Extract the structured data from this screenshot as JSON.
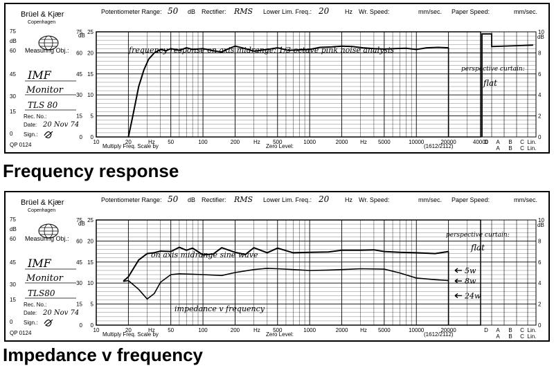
{
  "charts": [
    {
      "brand": "Brüel & Kjær",
      "brand_city": "Copenhagen",
      "potentiometer_label": "Potentiometer Range:",
      "potentiometer_value": "50",
      "db_unit": "dB",
      "rectifier_label": "Rectifier:",
      "rectifier_value": "RMS",
      "lower_lim_label": "Lower Lim. Freq.:",
      "lower_lim_value": "20",
      "hz_unit": "Hz",
      "wr_speed_label": "Wr. Speed:",
      "speed_unit": "mm/sec.",
      "paper_speed_label": "Paper Speed:",
      "measuring_obj_label": "Measuring Obj.:",
      "obj_line1": "IMF",
      "obj_line2": "Monitor",
      "obj_line3": "TLS 80",
      "rec_no_label": "Rec. No.:",
      "date_label": "Date:",
      "date_value": "20 Nov 74",
      "sign_label": "Sign.:",
      "form_code": "QP 0124",
      "multiply_label": "Multiply Freq. Scale by",
      "zero_level_label": "Zero Level:",
      "code_label": "(1612/2112)",
      "annotation_main": "frequency response on axis midrange: 1/3 octave pink noise analysis",
      "annotation_side1": "perspective curtain:",
      "annotation_side2": "flat",
      "side_annotations": []
    },
    {
      "brand": "Brüel & Kjær",
      "brand_city": "Copenhagen",
      "potentiometer_label": "Potentiometer Range:",
      "potentiometer_value": "50",
      "db_unit": "dB",
      "rectifier_label": "Rectifier:",
      "rectifier_value": "RMS",
      "lower_lim_label": "Lower Lim. Freq.:",
      "lower_lim_value": "20",
      "hz_unit": "Hz",
      "wr_speed_label": "Wr. Speed:",
      "speed_unit": "mm/sec.",
      "paper_speed_label": "Paper Speed:",
      "measuring_obj_label": "Measuring Obj.:",
      "obj_line1": "IMF",
      "obj_line2": "Monitor",
      "obj_line3": "TLS80",
      "rec_no_label": "Rec. No.:",
      "date_label": "Date:",
      "date_value": "20 Nov 74",
      "sign_label": "Sign.:",
      "form_code": "QP 0124",
      "multiply_label": "Multiply Freq. Scale by",
      "zero_level_label": "Zero Level:",
      "code_label": "(1612/2112)",
      "annotation_main": "on axis midrange sine wave",
      "annotation_curve2": "impedance v frequency",
      "annotation_side1": "perspective curtain:",
      "annotation_side2": "flat",
      "side_annotations": [
        "5w",
        "8w",
        "24w"
      ]
    }
  ],
  "captions": {
    "top": "Frequency response",
    "bottom": "Impedance v frequency"
  },
  "chart_data": [
    {
      "type": "line",
      "title": "Frequency response",
      "x_scale": "log",
      "xlim": [
        10,
        40000
      ],
      "x_ticks": [
        10,
        20,
        50,
        100,
        200,
        500,
        1000,
        2000,
        5000,
        10000,
        20000,
        40000
      ],
      "x_tick_labels": [
        "10",
        "20",
        "Hz",
        "50",
        "100",
        "200",
        "Hz",
        "500",
        "1000",
        "2000",
        "Hz",
        "5000",
        "10000",
        "20000",
        "40000"
      ],
      "ylim": [
        0,
        25
      ],
      "y_ticks_left": [
        "0",
        "5",
        "10",
        "15",
        "20",
        "25"
      ],
      "y_ticks_left_outer": [
        "0",
        "15",
        "30",
        "45",
        "60",
        "75"
      ],
      "y_ticks_right": [
        "0",
        "2",
        "4",
        "6",
        "8",
        "10"
      ],
      "y_unit_left": "dB",
      "y_unit_right": "dB",
      "weighting_labels_top": [
        "D",
        "A",
        "B",
        "C",
        "Lin."
      ],
      "weighting_labels_bottom": [
        "A",
        "B",
        "C",
        "Lin."
      ],
      "series": [
        {
          "x": [
            20,
            22,
            25,
            28,
            31,
            35,
            40,
            45,
            50,
            60,
            70,
            80,
            100,
            125,
            150,
            160,
            200,
            250,
            300,
            400,
            500,
            630,
            800,
            1000,
            1250,
            1600,
            2000,
            2500,
            3150,
            4000,
            5000,
            6300,
            8000,
            10000,
            12500,
            16000,
            20000
          ],
          "y": [
            0,
            5,
            12,
            16,
            18.5,
            20,
            20.8,
            20.5,
            21,
            20.6,
            21.2,
            20.8,
            21,
            20.5,
            20.2,
            20.6,
            21.6,
            21,
            20.4,
            20.8,
            21.2,
            20.6,
            20.7,
            20.8,
            21.3,
            21.4,
            21.6,
            21.5,
            21.2,
            21,
            20.9,
            21,
            21.1,
            20.8,
            21.2,
            21.3,
            21.2
          ]
        }
      ]
    },
    {
      "type": "line",
      "title": "Impedance v frequency",
      "x_scale": "log",
      "xlim": [
        10,
        40000
      ],
      "x_ticks": [
        10,
        20,
        50,
        100,
        200,
        500,
        1000,
        2000,
        5000,
        10000,
        20000
      ],
      "ylim": [
        0,
        25
      ],
      "y_ticks_left": [
        "0",
        "5",
        "10",
        "15",
        "20",
        "25"
      ],
      "y_ticks_left_outer": [
        "0",
        "15",
        "30",
        "45",
        "60",
        "75"
      ],
      "y_ticks_right": [
        "0",
        "2",
        "4",
        "6",
        "8",
        "10"
      ],
      "series": [
        {
          "name": "on axis midrange sine wave",
          "x": [
            18,
            20,
            25,
            30,
            35,
            40,
            50,
            60,
            70,
            80,
            100,
            125,
            150,
            200,
            250,
            300,
            400,
            500,
            700,
            1000,
            1500,
            2000,
            3000,
            4000,
            5000,
            7000,
            10000,
            15000,
            20000
          ],
          "y": [
            10.5,
            11.5,
            15.5,
            17,
            17.2,
            17.6,
            17.5,
            18.5,
            17.8,
            18.3,
            16.7,
            16.9,
            18.4,
            17.3,
            16.8,
            18.4,
            17.2,
            18.3,
            17.2,
            17.3,
            17.4,
            17.8,
            17.8,
            17.9,
            17.5,
            17.3,
            17.2,
            17.0,
            17.5
          ]
        },
        {
          "name": "impedance v frequency",
          "x": [
            18,
            20,
            25,
            30,
            35,
            40,
            50,
            60,
            80,
            100,
            150,
            200,
            300,
            400,
            500,
            700,
            1000,
            1500,
            2000,
            3000,
            5000,
            7000,
            10000,
            15000,
            20000
          ],
          "y": [
            10.4,
            10.6,
            8.5,
            6.2,
            7.5,
            10.2,
            12,
            12.2,
            12.1,
            12,
            11.8,
            12.5,
            13.2,
            13.5,
            13.4,
            13.2,
            13.0,
            13.1,
            13.2,
            13.4,
            13.3,
            12.4,
            11.2,
            10.8,
            10.6
          ]
        }
      ]
    }
  ]
}
